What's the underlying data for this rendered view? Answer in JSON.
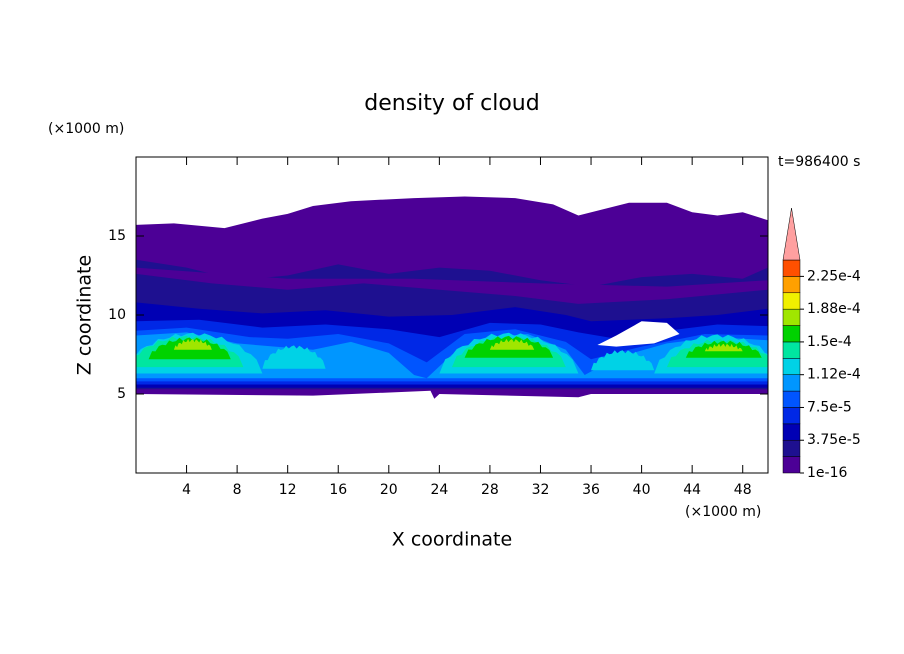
{
  "chart_data": {
    "type": "contour",
    "title": "density of cloud",
    "x_label": "X coordinate",
    "y_label": "Z coordinate",
    "x_unit": "(×1000 m)",
    "y_unit": "(×1000 m)",
    "time_label": "t=986400 s",
    "xlim": [
      0,
      50
    ],
    "ylim": [
      0,
      20
    ],
    "xticks": [
      4,
      8,
      12,
      16,
      20,
      24,
      28,
      32,
      36,
      40,
      44,
      48
    ],
    "yticks": [
      5,
      10,
      15
    ],
    "levels": [
      1e-16,
      1.875e-05,
      3.75e-05,
      5.625e-05,
      7.5e-05,
      9.375e-05,
      0.0001125,
      0.00013125,
      0.00015,
      0.00016875,
      0.0001875,
      0.00020625,
      0.000225,
      0.00024375
    ],
    "colors": [
      "#4c0096",
      "#1e1090",
      "#0000b4",
      "#0028e6",
      "#0055ff",
      "#0096ff",
      "#00d2e6",
      "#00e6a0",
      "#00d200",
      "#a0e600",
      "#f0f000",
      "#ffa000",
      "#ff5000",
      "#ffa0a0"
    ],
    "colorbar_ticks": [
      1e-16,
      {
        "value": 3.75e-05,
        "label": "3.75e-5"
      },
      {
        "value": 7.5e-05,
        "label": "7.5e-5"
      },
      {
        "value": 0.0001125,
        "label": "1.12e-4"
      },
      {
        "value": 0.00015,
        "label": "1.5e-4"
      },
      {
        "value": 0.0001875,
        "label": "1.88e-4"
      },
      {
        "value": 0.000225,
        "label": "2.25e-4"
      }
    ]
  }
}
